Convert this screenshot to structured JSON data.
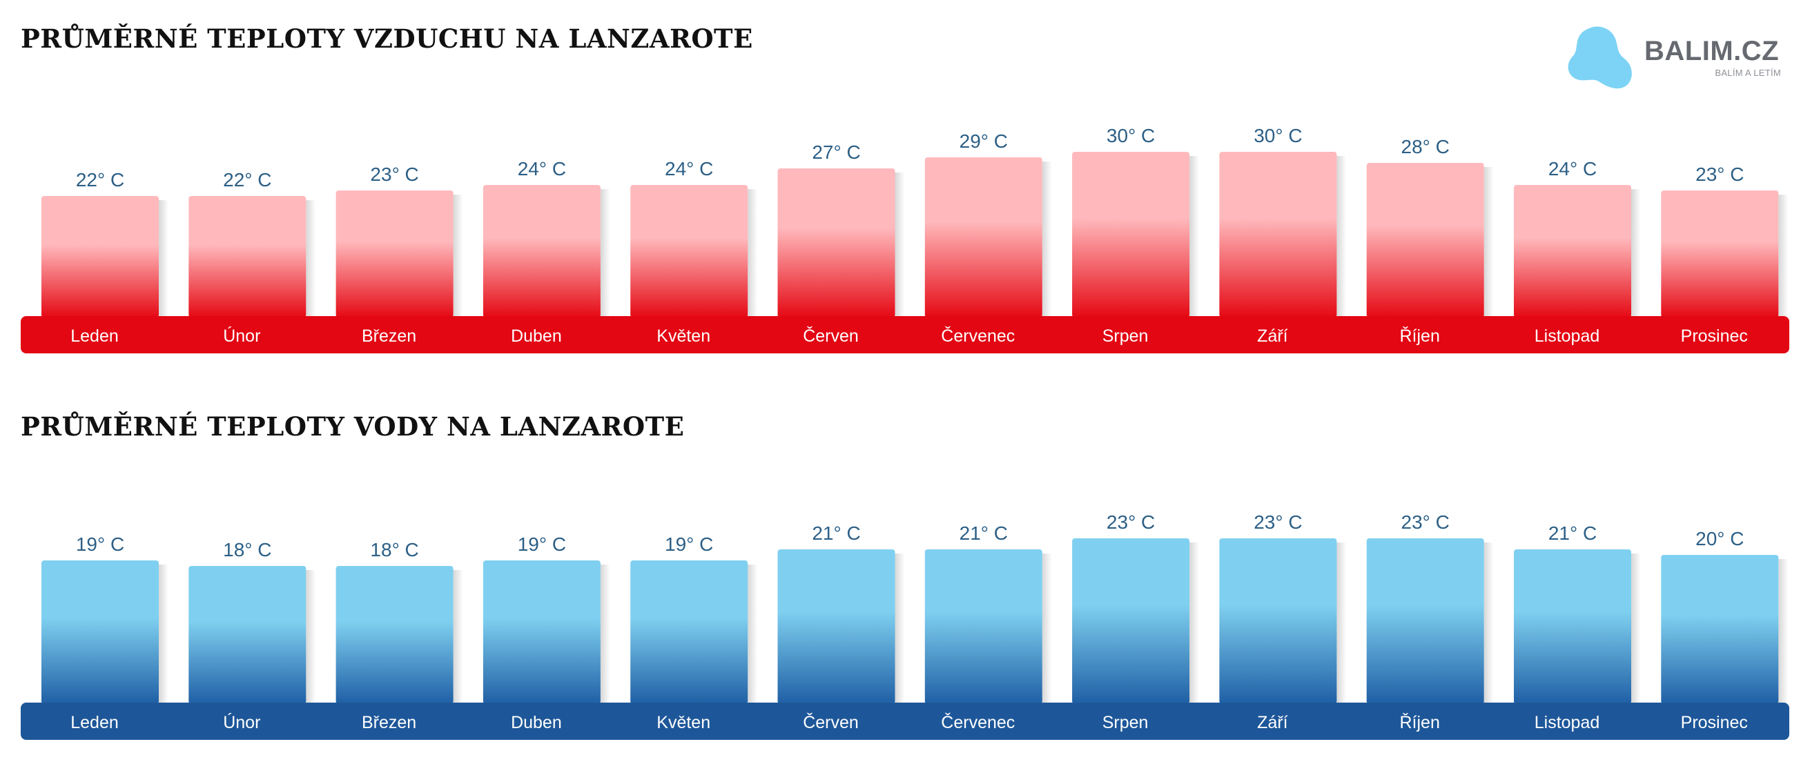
{
  "logo": {
    "name": "BALIM.CZ",
    "tagline": "BALÍM A LETÍM",
    "color": "#7dd3f5"
  },
  "chart_data": [
    {
      "type": "bar",
      "title": "PRŮMĚRNÉ TEPLOTY VZDUCHU NA LANZAROTE",
      "categories": [
        "Leden",
        "Únor",
        "Březen",
        "Duben",
        "Květen",
        "Červen",
        "Červenec",
        "Srpen",
        "Září",
        "Říjen",
        "Listopad",
        "Prosinec"
      ],
      "values": [
        22,
        22,
        23,
        24,
        24,
        27,
        29,
        30,
        30,
        28,
        24,
        23
      ],
      "value_labels": [
        "22° C",
        "22° C",
        "23° C",
        "24° C",
        "24° C",
        "27° C",
        "29° C",
        "30° C",
        "30° C",
        "28° C",
        "24° C",
        "23° C"
      ],
      "colors": {
        "bar_top": "#ffb9bc",
        "bar_bottom": "#e50914",
        "band": "#e30613"
      }
    },
    {
      "type": "bar",
      "title": "PRŮMĚRNÉ TEPLOTY VODY NA LANZAROTE",
      "categories": [
        "Leden",
        "Únor",
        "Březen",
        "Duben",
        "Květen",
        "Červen",
        "Červenec",
        "Srpen",
        "Září",
        "Říjen",
        "Listopad",
        "Prosinec"
      ],
      "values": [
        19,
        18,
        18,
        19,
        19,
        21,
        21,
        23,
        23,
        23,
        21,
        20
      ],
      "value_labels": [
        "19° C",
        "18° C",
        "18° C",
        "19° C",
        "19° C",
        "21° C",
        "21° C",
        "23° C",
        "23° C",
        "23° C",
        "21° C",
        "20° C"
      ],
      "colors": {
        "bar_top": "#7fd0f0",
        "bar_bottom": "#1f5fa5",
        "band": "#1e5799"
      }
    }
  ]
}
